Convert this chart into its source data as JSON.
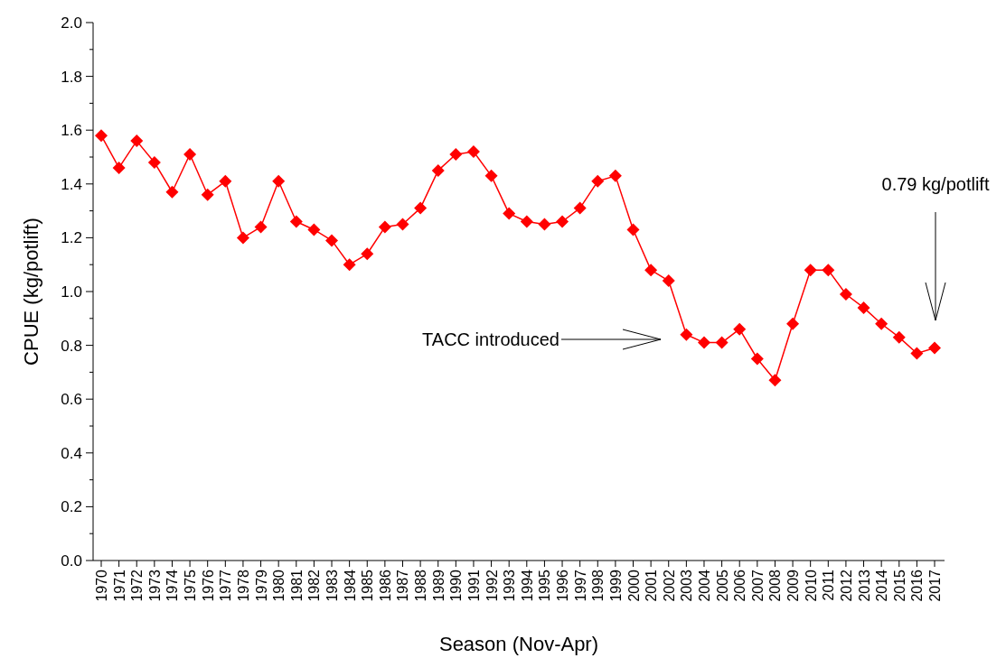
{
  "chart_data": {
    "type": "line",
    "xlabel": "Season (Nov-Apr)",
    "ylabel": "CPUE (kg/potlift)",
    "categories": [
      "1970",
      "1971",
      "1972",
      "1973",
      "1974",
      "1975",
      "1976",
      "1977",
      "1978",
      "1979",
      "1980",
      "1981",
      "1982",
      "1983",
      "1984",
      "1985",
      "1986",
      "1987",
      "1988",
      "1989",
      "1990",
      "1991",
      "1992",
      "1993",
      "1994",
      "1995",
      "1996",
      "1997",
      "1998",
      "1999",
      "2000",
      "2001",
      "2002",
      "2003",
      "2004",
      "2005",
      "2006",
      "2007",
      "2008",
      "2009",
      "2010",
      "2011",
      "2012",
      "2013",
      "2014",
      "2015",
      "2016",
      "2017"
    ],
    "series": [
      {
        "color": "#ff0000",
        "values": [
          1.58,
          1.46,
          1.56,
          1.48,
          1.37,
          1.51,
          1.36,
          1.41,
          1.2,
          1.24,
          1.41,
          1.26,
          1.23,
          1.19,
          1.1,
          1.14,
          1.24,
          1.25,
          1.31,
          1.45,
          1.51,
          1.52,
          1.43,
          1.29,
          1.26,
          1.25,
          1.26,
          1.31,
          1.41,
          1.43,
          1.23,
          1.08,
          1.04,
          0.84,
          0.81,
          0.81,
          0.86,
          0.75,
          0.67,
          0.88,
          1.08,
          1.08,
          0.99,
          0.94,
          0.88,
          0.83,
          0.77,
          0.79
        ]
      }
    ],
    "ylim": [
      0,
      2
    ],
    "yticks": [
      {
        "value": 0,
        "label": "0.0"
      },
      {
        "value": 0.1,
        "label": null
      },
      {
        "value": 0.2,
        "label": "0.2"
      },
      {
        "value": 0.3,
        "label": null
      },
      {
        "value": 0.4,
        "label": "0.4"
      },
      {
        "value": 0.5,
        "label": null
      },
      {
        "value": 0.6,
        "label": "0.6"
      },
      {
        "value": 0.7,
        "label": null
      },
      {
        "value": 0.8,
        "label": "0.8"
      },
      {
        "value": 0.9,
        "label": null
      },
      {
        "value": 1,
        "label": "1.0"
      },
      {
        "value": 1.1,
        "label": null
      },
      {
        "value": 1.2,
        "label": "1.2"
      },
      {
        "value": 1.3,
        "label": null
      },
      {
        "value": 1.4,
        "label": "1.4"
      },
      {
        "value": 1.5,
        "label": null
      },
      {
        "value": 1.6,
        "label": "1.6"
      },
      {
        "value": 1.7,
        "label": null
      },
      {
        "value": 1.8,
        "label": "1.8"
      },
      {
        "value": 1.9,
        "label": null
      },
      {
        "value": 2,
        "label": "2.0"
      }
    ],
    "marker": "diamond",
    "line_style": "solid",
    "grid": false,
    "annotations": [
      "TACC introduced",
      "0.79 kg/potlift"
    ]
  }
}
